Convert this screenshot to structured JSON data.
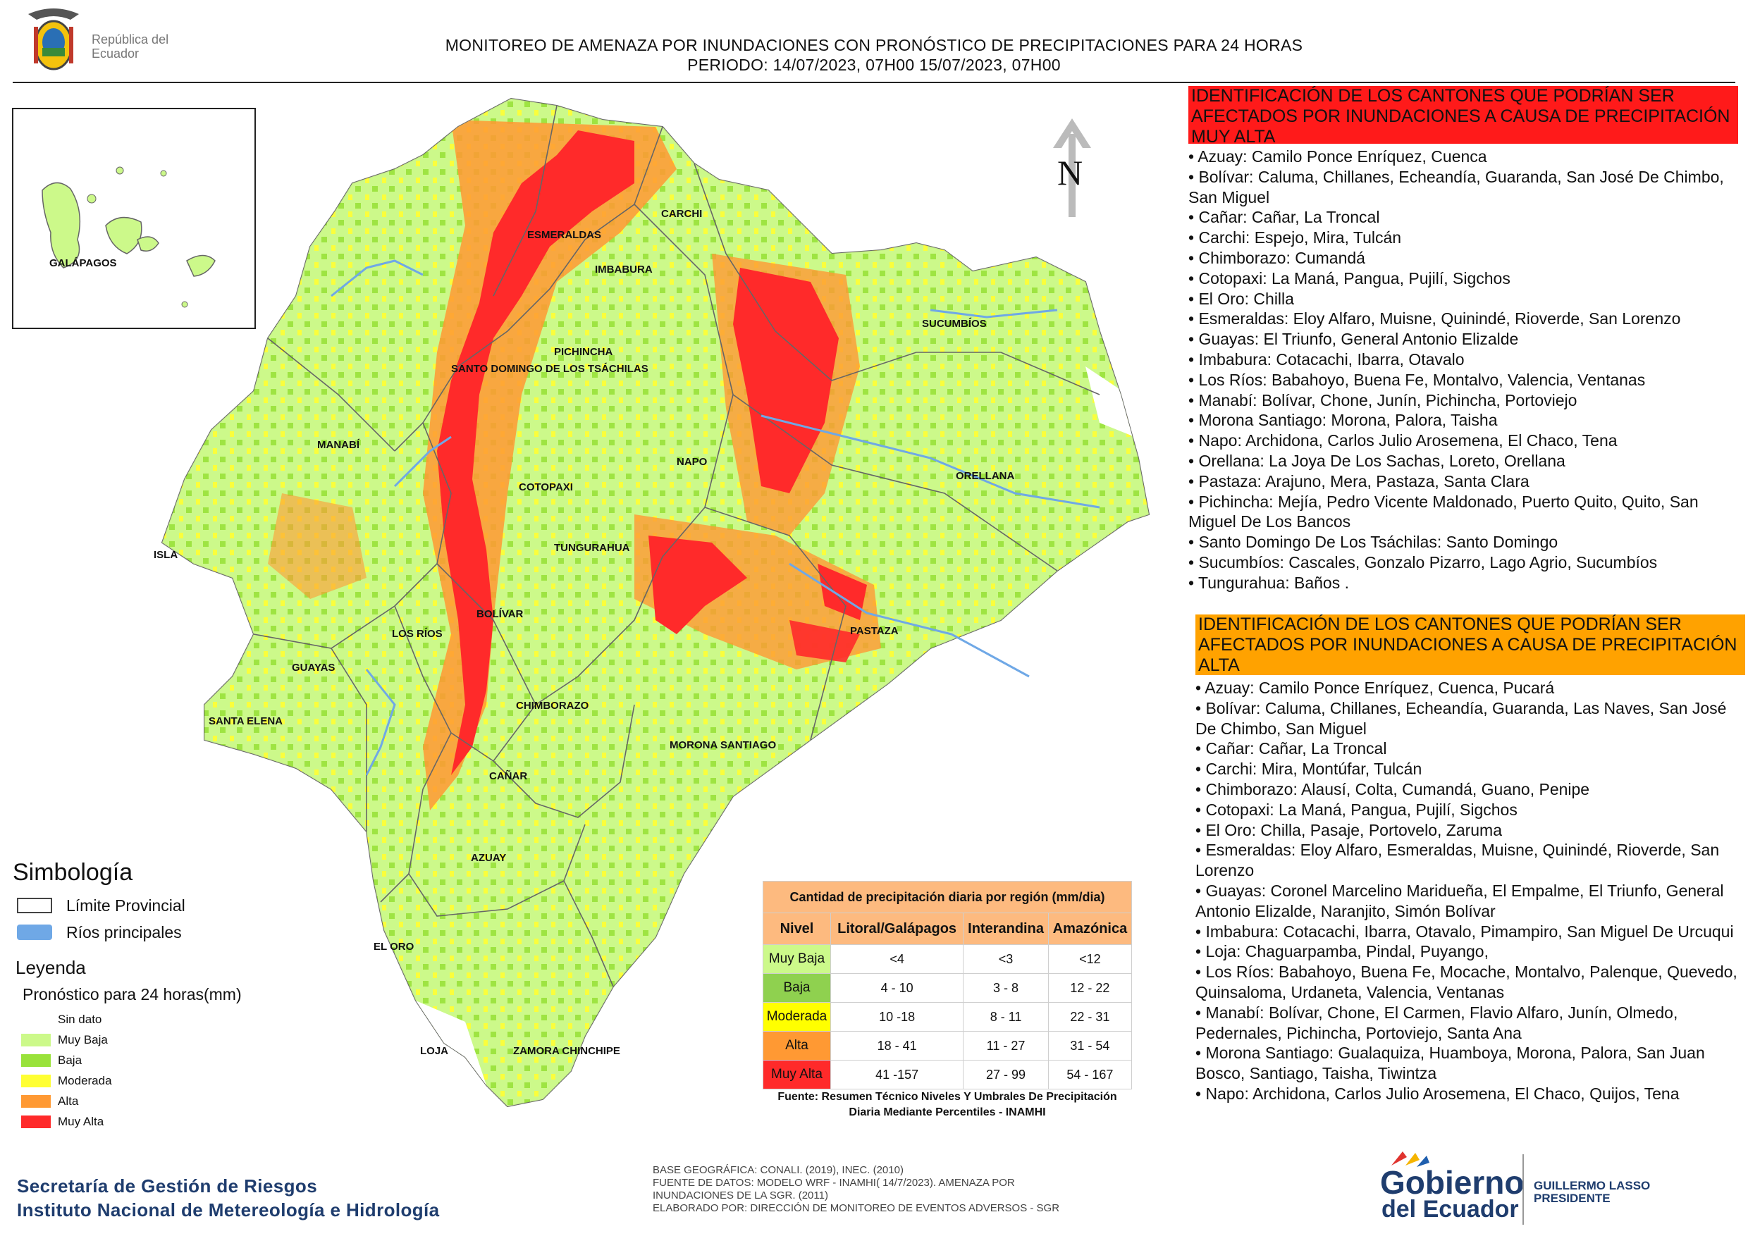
{
  "header": {
    "title_line1": "MONITOREO DE AMENAZA POR INUNDACIONES  CON PRONÓSTICO DE  PRECIPITACIONES PARA 24 HORAS",
    "title_line2": "PERIODO: 14/07/2023, 07H00 15/07/2023, 07H00",
    "logo_text": "República del Ecuador"
  },
  "map": {
    "north_label": "N",
    "inset_label": "GALÁPAGOS",
    "province_labels": [
      "CARCHI",
      "ESMERALDAS",
      "IMBABURA",
      "SUCUMBÍOS",
      "PICHINCHA",
      "SANTO DOMINGO DE LOS TSÁCHILAS",
      "MANABÍ",
      "NAPO",
      "ORELLANA",
      "COTOPAXI",
      "TUNGURAHUA",
      "ISLA",
      "BOLÍVAR",
      "LOS RÍOS",
      "PASTAZA",
      "GUAYAS",
      "SANTA ELENA",
      "CHIMBORAZO",
      "MORONA SANTIAGO",
      "CAÑAR",
      "AZUAY",
      "EL ORO",
      "LOJA",
      "ZAMORA CHINCHIPE"
    ],
    "colors": {
      "sin_dato": "#ffffff",
      "muy_baja": "#ccf98a",
      "baja": "#99e23a",
      "moderada": "#ffff33",
      "alta": "#ff9933",
      "muy_alta": "#ff2a2a",
      "rivers": "#6fa8e6"
    }
  },
  "panel_red": {
    "heading": "IDENTIFICACIÓN DE LOS CANTONES QUE PODRÍAN SER AFECTADOS POR INUNDACIONES  A CAUSA DE PRECIPITACIÓN MUY ALTA",
    "items": [
      "Azuay: Camilo Ponce Enríquez, Cuenca",
      "Bolívar: Caluma, Chillanes, Echeandía, Guaranda, San José De Chimbo, San Miguel",
      "Cañar: Cañar, La Troncal",
      "Carchi: Espejo, Mira, Tulcán",
      "Chimborazo: Cumandá",
      "Cotopaxi: La Maná, Pangua, Pujilí, Sigchos",
      "El Oro: Chilla",
      "Esmeraldas: Eloy Alfaro, Muisne, Quinindé, Rioverde, San Lorenzo",
      "Guayas: El Triunfo, General Antonio Elizalde",
      "Imbabura: Cotacachi, Ibarra, Otavalo",
      "Los Ríos: Babahoyo, Buena Fe, Montalvo, Valencia, Ventanas",
      "Manabí: Bolívar, Chone, Junín, Pichincha, Portoviejo",
      "Morona Santiago: Morona, Palora, Taisha",
      "Napo: Archidona, Carlos Julio Arosemena, El Chaco, Tena",
      "Orellana: La Joya De Los Sachas, Loreto, Orellana",
      "Pastaza: Arajuno, Mera, Pastaza, Santa Clara",
      "Pichincha: Mejía, Pedro Vicente Maldonado, Puerto Quito, Quito, San Miguel De Los Bancos",
      "Santo Domingo De Los Tsáchilas: Santo Domingo",
      "Sucumbíos: Cascales, Gonzalo Pizarro, Lago Agrio, Sucumbíos",
      "Tungurahua: Baños ."
    ]
  },
  "panel_orange": {
    "heading": "IDENTIFICACIÓN DE LOS CANTONES QUE  PODRÍAN SER AFECTADOS POR INUNDACIONES  A CAUSA DE PRECIPITACIÓN ALTA",
    "items": [
      "Azuay: Camilo Ponce Enríquez, Cuenca, Pucará",
      "Bolívar: Caluma, Chillanes, Echeandía, Guaranda, Las Naves, San José De Chimbo, San Miguel",
      "Cañar: Cañar, La Troncal",
      "Carchi: Mira, Montúfar, Tulcán",
      "Chimborazo: Alausí, Colta, Cumandá, Guano, Penipe",
      "Cotopaxi: La Maná, Pangua, Pujilí, Sigchos",
      "El Oro: Chilla, Pasaje, Portovelo, Zaruma",
      "Esmeraldas: Eloy Alfaro, Esmeraldas, Muisne, Quinindé, Rioverde, San Lorenzo",
      "Guayas: Coronel Marcelino Maridueña, El Empalme, El Triunfo, General Antonio Elizalde, Naranjito, Simón Bolívar",
      "Imbabura: Cotacachi, Ibarra, Otavalo, Pimampiro, San Miguel De Urcuqui",
      "Loja: Chaguarpamba, Pindal, Puyango,",
      "Los Ríos: Babahoyo, Buena Fe, Mocache, Montalvo, Palenque, Quevedo, Quinsaloma, Urdaneta, Valencia, Ventanas",
      "Manabí: Bolívar, Chone, El Carmen, Flavio Alfaro, Junín, Olmedo, Pedernales, Pichincha, Portoviejo, Santa Ana",
      "Morona Santiago: Gualaquiza, Huamboya, Morona, Palora, San Juan Bosco, Santiago, Taisha, Tiwintza",
      "Napo: Archidona, Carlos Julio Arosemena, El Chaco, Quijos, Tena"
    ]
  },
  "simbologia": {
    "title": "Simbología",
    "items": [
      {
        "label": "Límite Provincial",
        "swatch": "outline"
      },
      {
        "label": "Ríos principales",
        "swatch": "#6fa8e6"
      }
    ]
  },
  "leyenda": {
    "title": "Leyenda",
    "subtitle": "Pronóstico para 24 horas(mm)",
    "items": [
      {
        "label": "Sin dato",
        "color": "#ffffff"
      },
      {
        "label": "Muy Baja",
        "color": "#ccf98a"
      },
      {
        "label": "Baja",
        "color": "#99e23a"
      },
      {
        "label": "Moderada",
        "color": "#ffff33"
      },
      {
        "label": "Alta",
        "color": "#ff9933"
      },
      {
        "label": "Muy Alta",
        "color": "#ff2a2a"
      }
    ]
  },
  "rain_table": {
    "caption": "Cantidad de precipitación diaria por región (mm/dia)",
    "headers": [
      "Nivel",
      "Litoral/Galápagos",
      "Interandina",
      "Amazónica"
    ],
    "rows": [
      {
        "nivel": "Muy Baja",
        "color": "#ccf98a",
        "values": [
          "<4",
          "<3",
          "<12"
        ]
      },
      {
        "nivel": "Baja",
        "color": "#8fd14f",
        "values": [
          "4 - 10",
          "3 - 8",
          "12 - 22"
        ]
      },
      {
        "nivel": "Moderada",
        "color": "#ffff00",
        "values": [
          "10 -18",
          "8 - 11",
          "22 - 31"
        ]
      },
      {
        "nivel": "Alta",
        "color": "#ff9933",
        "values": [
          "18 - 41",
          "11 - 27",
          "31 - 54"
        ]
      },
      {
        "nivel": "Muy Alta",
        "color": "#ff2a2a",
        "values": [
          "41 -157",
          "27 - 99",
          "54 - 167"
        ]
      }
    ],
    "source": "Fuente: Resumen Técnico Niveles Y Umbrales De Precipitación Diaria Mediante Percentiles - INAMHI"
  },
  "credits": [
    "BASE GEOGRÁFICA: CONALI. (2019), INEC. (2010)",
    "FUENTE DE DATOS: MODELO WRF - INAMHI( 14/7/2023).  AMENAZA POR INUNDACIONES DE LA SGR. (2011)",
    "ELABORADO POR: DIRECCIÓN DE MONITOREO DE EVENTOS ADVERSOS - SGR"
  ],
  "agencies": [
    "Secretaría de Gestión de Riesgos",
    "Instituto Nacional de Metereología e Hidrología"
  ],
  "gobierno": {
    "line1": "Gobierno",
    "line2": "del Ecuador",
    "president": "GUILLERMO LASSO",
    "president_title": "PRESIDENTE"
  }
}
